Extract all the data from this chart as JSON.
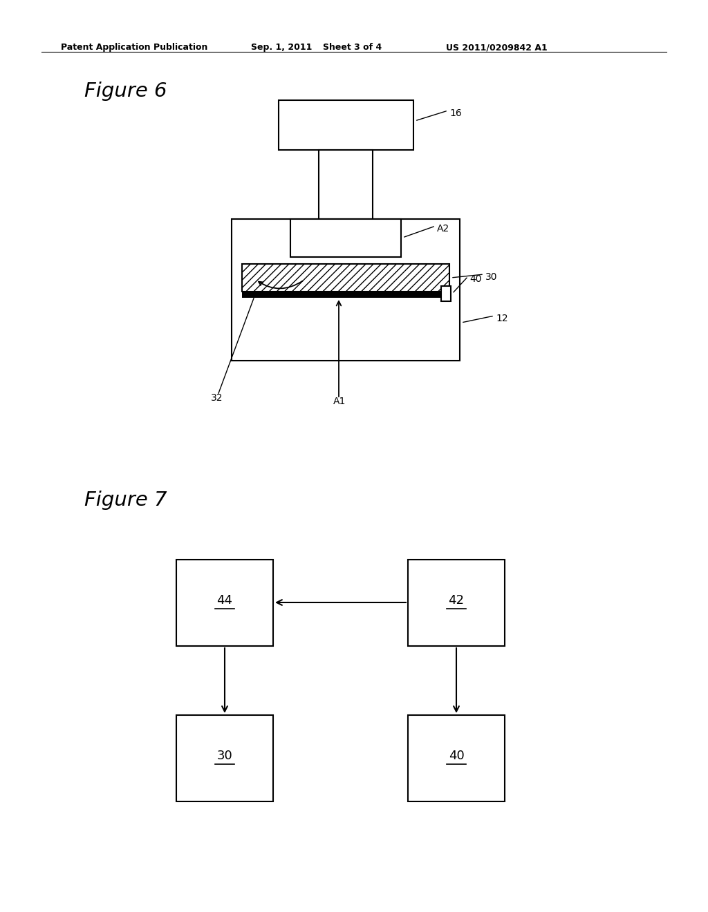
{
  "bg_color": "#ffffff",
  "header_text": "Patent Application Publication",
  "header_date": "Sep. 1, 2011",
  "header_sheet": "Sheet 3 of 4",
  "header_patent": "US 2011/0209842 A1",
  "fig6_title": "Figure 6",
  "fig7_title": "Figure 7",
  "label_16": "16",
  "label_30": "30",
  "label_12": "12",
  "label_32": "32",
  "label_40": "40",
  "label_A1": "A1",
  "label_A2": "A2",
  "label_44": "44",
  "label_42": "42",
  "label_30b": "30",
  "label_40b": "40"
}
